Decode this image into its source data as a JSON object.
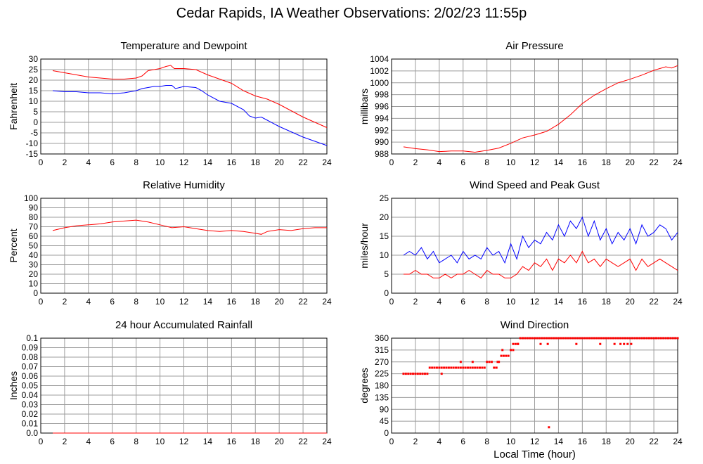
{
  "page": {
    "title": "Cedar Rapids, IA Weather Observations: 2/02/23 11:55p",
    "xaxis_label": "Local Time (hour)"
  },
  "colors": {
    "red": "#ff0000",
    "blue": "#0000ff",
    "grid": "#9c9c9c",
    "frame": "#000000"
  },
  "chart_data": [
    {
      "id": "temp",
      "type": "line",
      "title": "Temperature and Dewpoint",
      "xlabel": "",
      "ylabel": "Fahrenheit",
      "xlim": [
        0,
        24
      ],
      "ylim": [
        -15,
        30
      ],
      "xticks": [
        0,
        2,
        4,
        6,
        8,
        10,
        12,
        14,
        16,
        18,
        20,
        22,
        24
      ],
      "yticks": [
        -15,
        -10,
        -5,
        0,
        5,
        10,
        15,
        20,
        25,
        30
      ],
      "grid": true,
      "series": [
        {
          "color": "#ff0000",
          "x": [
            1,
            2,
            3,
            4,
            5,
            6,
            7,
            8,
            8.5,
            9,
            9.5,
            10,
            10.5,
            10.9,
            11.2,
            12,
            13,
            14,
            15,
            16,
            17,
            18,
            19,
            20,
            21,
            22,
            23,
            24
          ],
          "y": [
            24.5,
            23.5,
            22.5,
            21.5,
            21,
            20.5,
            20.5,
            21,
            22,
            24.5,
            25,
            25.5,
            26.5,
            27,
            25.5,
            25.5,
            25,
            22.5,
            20.5,
            18.5,
            15,
            12.5,
            11,
            8.5,
            5.5,
            2.5,
            0,
            -2.5
          ]
        },
        {
          "color": "#0000ff",
          "x": [
            1,
            2,
            3,
            4,
            5,
            6,
            7,
            8,
            8.5,
            9,
            9.5,
            10,
            10.5,
            11,
            11.3,
            12,
            13,
            13.5,
            14,
            15,
            16,
            17,
            17.5,
            18,
            18.5,
            19,
            20,
            21,
            22,
            23,
            24
          ],
          "y": [
            15,
            14.5,
            14.5,
            14,
            14,
            13.5,
            14,
            15,
            16,
            16.5,
            17,
            17,
            17.5,
            17.5,
            16,
            17,
            16.5,
            15,
            13,
            10,
            9,
            6,
            3,
            2,
            2.5,
            1,
            -2,
            -4.5,
            -7,
            -9,
            -11
          ]
        }
      ]
    },
    {
      "id": "pressure",
      "type": "line",
      "title": "Air Pressure",
      "xlabel": "",
      "ylabel": "millibars",
      "xlim": [
        0,
        24
      ],
      "ylim": [
        988,
        1004
      ],
      "xticks": [
        0,
        2,
        4,
        6,
        8,
        10,
        12,
        14,
        16,
        18,
        20,
        22,
        24
      ],
      "yticks": [
        988,
        990,
        992,
        994,
        996,
        998,
        1000,
        1002,
        1004
      ],
      "grid": true,
      "series": [
        {
          "color": "#ff0000",
          "x": [
            1,
            2,
            3,
            4,
            5,
            6,
            7,
            8,
            9,
            10,
            11,
            12,
            13,
            14,
            15,
            16,
            17,
            18,
            19,
            20,
            21,
            22,
            23,
            23.5,
            24
          ],
          "y": [
            989.2,
            988.9,
            988.7,
            988.4,
            988.5,
            988.5,
            988.3,
            988.6,
            989,
            989.8,
            990.7,
            991.2,
            991.8,
            993,
            994.6,
            996.5,
            997.9,
            999,
            1000,
            1000.6,
            1001.3,
            1002.1,
            1002.7,
            1002.5,
            1002.9
          ]
        }
      ]
    },
    {
      "id": "rh",
      "type": "line",
      "title": "Relative Humidity",
      "xlabel": "",
      "ylabel": "Percent",
      "xlim": [
        0,
        24
      ],
      "ylim": [
        0,
        100
      ],
      "xticks": [
        0,
        2,
        4,
        6,
        8,
        10,
        12,
        14,
        16,
        18,
        20,
        22,
        24
      ],
      "yticks": [
        0,
        10,
        20,
        30,
        40,
        50,
        60,
        70,
        80,
        90,
        100
      ],
      "grid": true,
      "series": [
        {
          "color": "#ff0000",
          "x": [
            1,
            2,
            3,
            4,
            5,
            6,
            7,
            8,
            9,
            10,
            11,
            12,
            13,
            14,
            15,
            16,
            17,
            18,
            18.5,
            19,
            20,
            21,
            22,
            23,
            24
          ],
          "y": [
            66,
            69,
            71,
            72,
            73,
            75,
            76,
            77,
            75,
            72,
            69,
            70,
            68,
            66,
            65,
            66,
            65,
            63,
            62,
            65,
            67,
            66,
            68,
            69,
            69
          ]
        }
      ]
    },
    {
      "id": "wind",
      "type": "line",
      "title": "Wind Speed and Peak Gust",
      "xlabel": "",
      "ylabel": "miles/hour",
      "xlim": [
        0,
        24
      ],
      "ylim": [
        0,
        25
      ],
      "xticks": [
        0,
        2,
        4,
        6,
        8,
        10,
        12,
        14,
        16,
        18,
        20,
        22,
        24
      ],
      "yticks": [
        0,
        5,
        10,
        15,
        20,
        25
      ],
      "grid": true,
      "series": [
        {
          "color": "#0000ff",
          "x": [
            1,
            1.5,
            2,
            2.5,
            3,
            3.5,
            4,
            4.5,
            5,
            5.5,
            6,
            6.5,
            7,
            7.5,
            8,
            8.5,
            9,
            9.5,
            10,
            10.5,
            11,
            11.5,
            12,
            12.5,
            13,
            13.5,
            14,
            14.5,
            15,
            15.5,
            16,
            16.5,
            17,
            17.5,
            18,
            18.5,
            19,
            19.5,
            20,
            20.5,
            21,
            21.5,
            22,
            22.5,
            23,
            23.5,
            24
          ],
          "y": [
            10,
            11,
            10,
            12,
            9,
            11,
            8,
            9,
            10,
            8,
            11,
            9,
            10,
            9,
            12,
            10,
            11,
            8,
            13,
            9,
            15,
            12,
            14,
            13,
            16,
            14,
            18,
            15,
            19,
            17,
            20,
            15,
            19,
            14,
            17,
            13,
            16,
            14,
            17,
            13,
            18,
            15,
            16,
            18,
            17,
            14,
            16
          ]
        },
        {
          "color": "#ff0000",
          "x": [
            1,
            1.5,
            2,
            2.5,
            3,
            3.5,
            4,
            4.5,
            5,
            5.5,
            6,
            6.5,
            7,
            7.5,
            8,
            8.5,
            9,
            9.5,
            10,
            10.5,
            11,
            11.5,
            12,
            12.5,
            13,
            13.5,
            14,
            14.5,
            15,
            15.5,
            16,
            16.5,
            17,
            17.5,
            18,
            18.5,
            19,
            19.5,
            20,
            20.5,
            21,
            21.5,
            22,
            22.5,
            23,
            23.5,
            24
          ],
          "y": [
            5,
            5,
            6,
            5,
            5,
            4,
            4,
            5,
            4,
            5,
            5,
            6,
            5,
            4,
            6,
            5,
            5,
            4,
            4,
            5,
            7,
            6,
            8,
            7,
            9,
            6,
            9,
            8,
            10,
            8,
            11,
            8,
            9,
            7,
            9,
            8,
            7,
            8,
            9,
            6,
            9,
            7,
            8,
            9,
            8,
            7,
            6
          ]
        }
      ]
    },
    {
      "id": "rain",
      "type": "line",
      "title": "24 hour Accumulated Rainfall",
      "xlabel": "",
      "ylabel": "Inches",
      "xlim": [
        0,
        24
      ],
      "ylim": [
        0,
        0.1
      ],
      "xticks": [
        0,
        2,
        4,
        6,
        8,
        10,
        12,
        14,
        16,
        18,
        20,
        22,
        24
      ],
      "yticks": [
        0,
        0.01,
        0.02,
        0.03,
        0.04,
        0.05,
        0.06,
        0.07,
        0.08,
        0.09,
        0.1
      ],
      "yticklabels": [
        "0.0",
        "0.01",
        "0.02",
        "0.03",
        "0.04",
        "0.05",
        "0.06",
        "0.07",
        "0.08",
        "0.09",
        "0.1"
      ],
      "grid": true,
      "series": [
        {
          "color": "#ff0000",
          "x": [
            1,
            24
          ],
          "y": [
            0,
            0
          ]
        }
      ]
    },
    {
      "id": "wdir",
      "type": "scatter",
      "title": "Wind Direction",
      "xlabel": "Local Time (hour)",
      "ylabel": "degrees",
      "xlim": [
        0,
        24
      ],
      "ylim": [
        0,
        360
      ],
      "xticks": [
        0,
        2,
        4,
        6,
        8,
        10,
        12,
        14,
        16,
        18,
        20,
        22,
        24
      ],
      "yticks": [
        0,
        45,
        90,
        135,
        180,
        225,
        270,
        315,
        360
      ],
      "grid": true,
      "series": [
        {
          "color": "#ff0000",
          "x": [
            1,
            1.2,
            1.4,
            1.6,
            1.8,
            2,
            2.2,
            2.4,
            2.6,
            2.8,
            3,
            3.2,
            3.4,
            3.6,
            3.8,
            4,
            4.2,
            4.4,
            4.6,
            4.8,
            5,
            5.2,
            5.4,
            5.6,
            5.8,
            6,
            6.2,
            6.4,
            6.6,
            6.8,
            7,
            7.2,
            7.4,
            7.6,
            7.8,
            8,
            8.2,
            8.4,
            8.6,
            8.8,
            9,
            9.2,
            9.4,
            9.6,
            9.8,
            10,
            10.2,
            10.4,
            10.6,
            10.8,
            11,
            11.2,
            11.4,
            11.6,
            11.8,
            12,
            12.2,
            12.4,
            12.6,
            12.8,
            13,
            13.2,
            13.4,
            13.6,
            13.8,
            14,
            14.2,
            14.4,
            14.6,
            14.8,
            15,
            15.2,
            15.4,
            15.6,
            15.8,
            16,
            16.2,
            16.4,
            16.6,
            16.8,
            17,
            17.2,
            17.4,
            17.6,
            17.8,
            18,
            18.2,
            18.4,
            18.6,
            18.8,
            19,
            19.2,
            19.4,
            19.6,
            19.8,
            20,
            20.2,
            20.4,
            20.6,
            20.8,
            21,
            21.2,
            21.4,
            21.6,
            21.8,
            22,
            22.2,
            22.4,
            22.6,
            22.8,
            23,
            23.2,
            23.4,
            23.6,
            23.8,
            24,
            4.2,
            5.8,
            6.8,
            8.6,
            8.9,
            9.3,
            10.2,
            10.6,
            12.5,
            13.1,
            13.2,
            15.5,
            17.5,
            18.7,
            19.2,
            19.5,
            19.8,
            20.1
          ],
          "y": [
            225,
            225,
            225,
            225,
            225,
            225,
            225,
            225,
            225,
            225,
            225,
            248,
            248,
            248,
            248,
            248,
            248,
            248,
            248,
            248,
            248,
            248,
            248,
            248,
            248,
            248,
            248,
            248,
            248,
            248,
            248,
            248,
            248,
            248,
            248,
            270,
            270,
            270,
            248,
            248,
            270,
            293,
            293,
            293,
            293,
            315,
            315,
            338,
            338,
            360,
            360,
            360,
            360,
            360,
            360,
            360,
            360,
            360,
            360,
            360,
            360,
            360,
            360,
            360,
            360,
            360,
            360,
            360,
            360,
            360,
            360,
            360,
            360,
            360,
            360,
            360,
            360,
            360,
            360,
            360,
            360,
            360,
            360,
            360,
            360,
            360,
            360,
            360,
            360,
            360,
            360,
            360,
            360,
            360,
            360,
            360,
            360,
            360,
            360,
            360,
            360,
            360,
            360,
            360,
            360,
            360,
            360,
            360,
            360,
            360,
            360,
            360,
            360,
            360,
            360,
            360,
            225,
            270,
            270,
            248,
            270,
            315,
            338,
            338,
            338,
            338,
            22,
            338,
            338,
            338,
            338,
            338,
            338,
            338
          ]
        }
      ]
    }
  ]
}
